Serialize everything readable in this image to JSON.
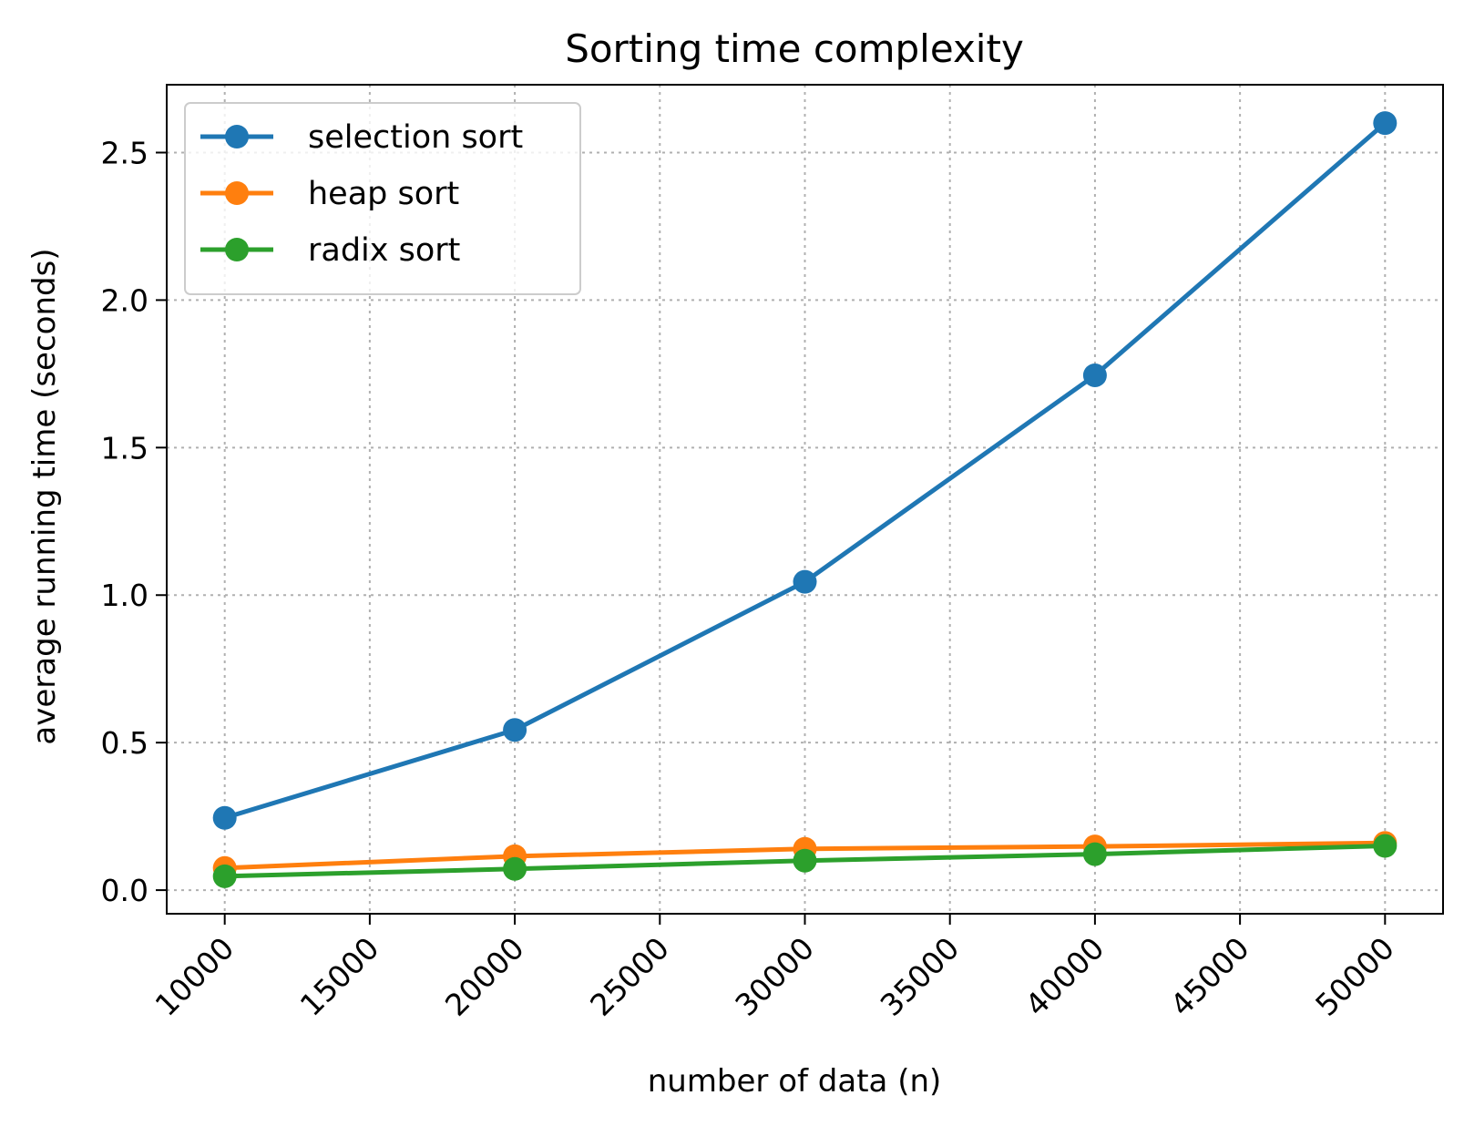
{
  "chart_data": {
    "type": "line",
    "title": "Sorting time complexity",
    "xlabel": "number of data (n)",
    "ylabel": "average running time (seconds)",
    "x": [
      10000,
      20000,
      30000,
      40000,
      50000
    ],
    "series": [
      {
        "name": "selection sort",
        "color": "#1f77b4",
        "values": [
          0.245,
          0.543,
          1.045,
          1.745,
          2.6
        ]
      },
      {
        "name": "heap sort",
        "color": "#ff7f0e",
        "values": [
          0.075,
          0.115,
          0.14,
          0.148,
          0.16
        ]
      },
      {
        "name": "radix sort",
        "color": "#2ca02c",
        "values": [
          0.047,
          0.072,
          0.1,
          0.122,
          0.15
        ]
      }
    ],
    "xlim": [
      8000,
      52000
    ],
    "ylim": [
      -0.08,
      2.73
    ],
    "xticks": [
      10000,
      15000,
      20000,
      25000,
      30000,
      35000,
      40000,
      45000,
      50000
    ],
    "xtick_labels": [
      "10000",
      "15000",
      "20000",
      "25000",
      "30000",
      "35000",
      "40000",
      "45000",
      "50000"
    ],
    "yticks": [
      0.0,
      0.5,
      1.0,
      1.5,
      2.0,
      2.5
    ],
    "ytick_labels": [
      "0.0",
      "0.5",
      "1.0",
      "1.5",
      "2.0",
      "2.5"
    ],
    "grid": true,
    "legend_position": "top-left",
    "marker": "circle"
  }
}
